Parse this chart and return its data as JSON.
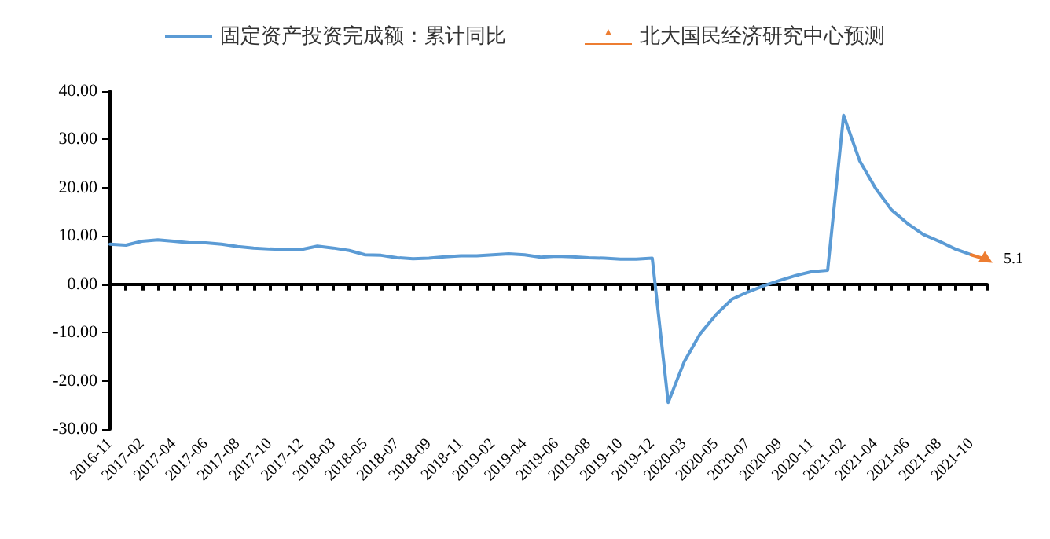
{
  "chart_data": {
    "type": "line",
    "categories": [
      "2016-11",
      null,
      "2017-02",
      null,
      "2017-04",
      null,
      "2017-06",
      null,
      "2017-08",
      null,
      "2017-10",
      null,
      "2017-12",
      null,
      "2018-03",
      null,
      "2018-05",
      null,
      "2018-07",
      null,
      "2018-09",
      null,
      "2018-11",
      null,
      "2019-02",
      null,
      "2019-04",
      null,
      "2019-06",
      null,
      "2019-08",
      null,
      "2019-10",
      null,
      "2019-12",
      null,
      "2020-03",
      null,
      "2020-05",
      null,
      "2020-07",
      null,
      "2020-09",
      null,
      "2020-11",
      null,
      "2021-02",
      null,
      "2021-04",
      null,
      "2021-06",
      null,
      "2021-08",
      null,
      "2021-10",
      null
    ],
    "series": [
      {
        "name": "固定资产投资完成额：累计同比",
        "color": "#5b9bd5",
        "marker": "none",
        "values": [
          8.3,
          8.1,
          8.9,
          9.2,
          8.9,
          8.6,
          8.6,
          8.3,
          7.8,
          7.5,
          7.3,
          7.2,
          7.2,
          7.9,
          7.5,
          7.0,
          6.1,
          6.0,
          5.5,
          5.3,
          5.4,
          5.7,
          5.9,
          5.9,
          6.1,
          6.3,
          6.1,
          5.6,
          5.8,
          5.7,
          5.5,
          5.4,
          5.2,
          5.2,
          5.4,
          -24.5,
          -16.1,
          -10.3,
          -6.3,
          -3.1,
          -1.6,
          -0.3,
          0.8,
          1.8,
          2.6,
          2.9,
          35.0,
          25.6,
          19.9,
          15.4,
          12.6,
          10.3,
          8.9,
          7.3,
          6.1,
          null
        ]
      },
      {
        "name": "北大国民经济研究中心预测",
        "color": "#ed7d31",
        "marker": "triangle",
        "values": [
          null,
          null,
          null,
          null,
          null,
          null,
          null,
          null,
          null,
          null,
          null,
          null,
          null,
          null,
          null,
          null,
          null,
          null,
          null,
          null,
          null,
          null,
          null,
          null,
          null,
          null,
          null,
          null,
          null,
          null,
          null,
          null,
          null,
          null,
          null,
          null,
          null,
          null,
          null,
          null,
          null,
          null,
          null,
          null,
          null,
          null,
          null,
          null,
          null,
          null,
          null,
          null,
          null,
          null,
          6.1,
          5.1
        ],
        "value_labels": [
          null,
          null,
          null,
          null,
          null,
          null,
          null,
          null,
          null,
          null,
          null,
          null,
          null,
          null,
          null,
          null,
          null,
          null,
          null,
          null,
          null,
          null,
          null,
          null,
          null,
          null,
          null,
          null,
          null,
          null,
          null,
          null,
          null,
          null,
          null,
          null,
          null,
          null,
          null,
          null,
          null,
          null,
          null,
          null,
          null,
          null,
          null,
          null,
          null,
          null,
          null,
          null,
          null,
          null,
          null,
          "5.1"
        ]
      }
    ],
    "ylim": [
      -30,
      40
    ],
    "yticks": [
      {
        "value": -30,
        "label": "-30.00"
      },
      {
        "value": -20,
        "label": "-20.00"
      },
      {
        "value": -10,
        "label": "-10.00"
      },
      {
        "value": 0,
        "label": "0.00"
      },
      {
        "value": 10,
        "label": "10.00"
      },
      {
        "value": 20,
        "label": "20.00"
      },
      {
        "value": 30,
        "label": "30.00"
      },
      {
        "value": 40,
        "label": "40.00"
      }
    ],
    "legend": "top"
  }
}
